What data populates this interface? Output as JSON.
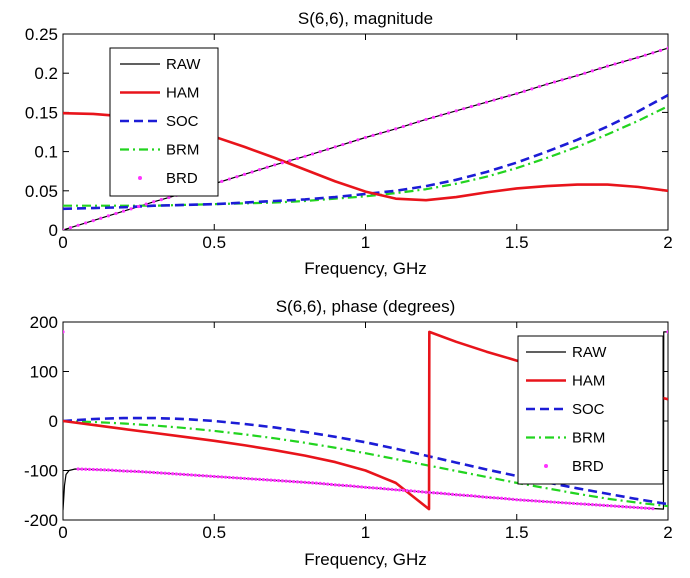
{
  "figure": {
    "background": "#ffffff"
  },
  "series_styles": {
    "RAW": {
      "color": "#000000",
      "style": "solid",
      "width": 1.2
    },
    "HAM": {
      "color": "#e8141b",
      "style": "solid",
      "width": 2.6
    },
    "SOC": {
      "color": "#1c1cd6",
      "style": "dashed",
      "width": 2.6
    },
    "BRM": {
      "color": "#22d41f",
      "style": "dashdot",
      "width": 2.2
    },
    "BRD": {
      "color": "#ff33ff",
      "style": "dots",
      "width": 0
    }
  },
  "chart_data": [
    {
      "type": "line",
      "title": "S(6,6), magnitude",
      "xlabel": "Frequency, GHz",
      "ylabel": "",
      "xlim": [
        0,
        2
      ],
      "ylim": [
        0,
        0.25
      ],
      "xticks": [
        "0",
        "0.5",
        "1",
        "1.5",
        "2"
      ],
      "yticks": [
        "0",
        "0.05",
        "0.1",
        "0.15",
        "0.2",
        "0.25"
      ],
      "grid": false,
      "legend_position": "top-left",
      "x": [
        0,
        0.1,
        0.2,
        0.3,
        0.4,
        0.5,
        0.6,
        0.7,
        0.8,
        0.9,
        1.0,
        1.1,
        1.2,
        1.3,
        1.4,
        1.5,
        1.6,
        1.7,
        1.8,
        1.9,
        2.0
      ],
      "series": [
        {
          "name": "RAW",
          "values": [
            0,
            0.012,
            0.024,
            0.036,
            0.047,
            0.059,
            0.071,
            0.083,
            0.094,
            0.106,
            0.118,
            0.129,
            0.141,
            0.152,
            0.163,
            0.174,
            0.186,
            0.197,
            0.209,
            0.22,
            0.232
          ]
        },
        {
          "name": "HAM",
          "values": [
            0.149,
            0.148,
            0.145,
            0.139,
            0.13,
            0.119,
            0.106,
            0.092,
            0.077,
            0.062,
            0.049,
            0.04,
            0.038,
            0.042,
            0.048,
            0.053,
            0.056,
            0.058,
            0.058,
            0.055,
            0.05
          ]
        },
        {
          "name": "SOC",
          "values": [
            0.027,
            0.028,
            0.029,
            0.031,
            0.032,
            0.033,
            0.035,
            0.037,
            0.039,
            0.042,
            0.046,
            0.05,
            0.056,
            0.064,
            0.074,
            0.086,
            0.1,
            0.115,
            0.132,
            0.151,
            0.172
          ]
        },
        {
          "name": "BRM",
          "values": [
            0.031,
            0.031,
            0.031,
            0.031,
            0.032,
            0.033,
            0.034,
            0.035,
            0.037,
            0.04,
            0.043,
            0.047,
            0.052,
            0.059,
            0.068,
            0.079,
            0.092,
            0.106,
            0.122,
            0.139,
            0.158
          ]
        },
        {
          "name": "BRD",
          "values": [
            0,
            0.012,
            0.024,
            0.036,
            0.047,
            0.059,
            0.071,
            0.083,
            0.094,
            0.106,
            0.118,
            0.129,
            0.141,
            0.152,
            0.163,
            0.174,
            0.186,
            0.197,
            0.209,
            0.22,
            0.232
          ]
        }
      ]
    },
    {
      "type": "line",
      "title": "S(6,6), phase (degrees)",
      "xlabel": "Frequency, GHz",
      "ylabel": "",
      "xlim": [
        0,
        2
      ],
      "ylim": [
        -200,
        200
      ],
      "xticks": [
        "0",
        "0.5",
        "1",
        "1.5",
        "2"
      ],
      "yticks": [
        "-200",
        "-100",
        "0",
        "100",
        "200"
      ],
      "grid": false,
      "legend_position": "top-right",
      "series": [
        {
          "name": "RAW",
          "x": [
            0,
            0.005,
            0.01,
            0.02,
            0.04,
            0.1,
            0.2,
            0.3,
            0.4,
            0.5,
            0.6,
            0.7,
            0.8,
            0.9,
            1.0,
            1.1,
            1.2,
            1.3,
            1.4,
            1.5,
            1.6,
            1.7,
            1.8,
            1.9,
            1.985,
            1.986,
            2.0
          ],
          "values": [
            -180,
            -130,
            -108,
            -100,
            -97,
            -98,
            -101,
            -104,
            -108,
            -112,
            -116,
            -120,
            -124,
            -129,
            -134,
            -139,
            -144,
            -149,
            -154,
            -159,
            -163,
            -167,
            -171,
            -175,
            -178,
            180,
            180
          ]
        },
        {
          "name": "HAM",
          "x": [
            0,
            0.1,
            0.2,
            0.3,
            0.4,
            0.5,
            0.6,
            0.7,
            0.8,
            0.9,
            1.0,
            1.1,
            1.21,
            1.211,
            1.3,
            1.4,
            1.5,
            1.6,
            1.7,
            1.8,
            1.9,
            2.0
          ],
          "values": [
            0,
            -8,
            -16,
            -24,
            -32,
            -40,
            -49,
            -59,
            -70,
            -83,
            -100,
            -125,
            -178,
            180,
            160,
            140,
            122,
            105,
            89,
            73,
            58,
            44
          ]
        },
        {
          "name": "SOC",
          "x": [
            0,
            0.1,
            0.2,
            0.3,
            0.4,
            0.5,
            0.6,
            0.7,
            0.8,
            0.9,
            1.0,
            1.1,
            1.2,
            1.3,
            1.4,
            1.5,
            1.6,
            1.7,
            1.8,
            1.9,
            2.0
          ],
          "values": [
            0,
            4,
            6,
            6,
            4,
            0,
            -6,
            -13,
            -22,
            -32,
            -43,
            -56,
            -70,
            -84,
            -98,
            -111,
            -124,
            -136,
            -147,
            -158,
            -168
          ]
        },
        {
          "name": "BRM",
          "x": [
            0,
            0.1,
            0.2,
            0.3,
            0.4,
            0.5,
            0.6,
            0.7,
            0.8,
            0.9,
            1.0,
            1.1,
            1.2,
            1.3,
            1.4,
            1.5,
            1.6,
            1.7,
            1.8,
            1.9,
            2.0
          ],
          "values": [
            0,
            -2,
            -5,
            -9,
            -14,
            -20,
            -27,
            -35,
            -44,
            -54,
            -65,
            -77,
            -89,
            -101,
            -113,
            -125,
            -136,
            -147,
            -157,
            -165,
            -172
          ]
        },
        {
          "name": "BRD",
          "x": [
            0,
            0.05,
            0.1,
            0.15,
            0.2,
            0.25,
            0.3,
            0.35,
            0.4,
            0.45,
            0.5,
            0.55,
            0.6,
            0.65,
            0.7,
            0.75,
            0.8,
            0.85,
            0.9,
            0.95,
            1.0,
            1.05,
            1.1,
            1.15,
            1.2,
            1.25,
            1.3,
            1.35,
            1.4,
            1.45,
            1.5,
            1.55,
            1.6,
            1.65,
            1.7,
            1.75,
            1.8,
            1.85,
            1.9,
            1.95,
            2.0
          ],
          "values": [
            180,
            -97,
            -98,
            -99,
            -101,
            -102,
            -104,
            -106,
            -108,
            -110,
            -112,
            -114,
            -116,
            -118,
            -120,
            -122,
            -124,
            -126,
            -129,
            -131,
            -134,
            -136,
            -139,
            -141,
            -144,
            -146,
            -149,
            -151,
            -154,
            -156,
            -159,
            -161,
            -163,
            -165,
            -167,
            -169,
            -171,
            -173,
            -175,
            -177,
            180
          ]
        }
      ]
    }
  ]
}
